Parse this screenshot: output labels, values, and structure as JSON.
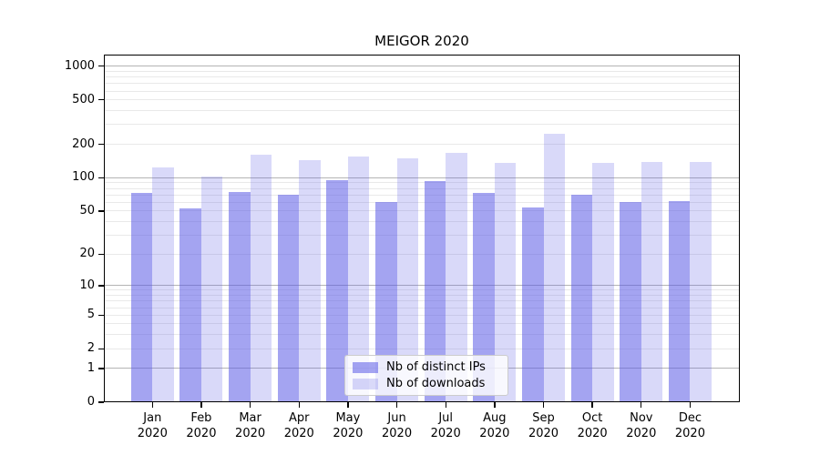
{
  "title": "MEIGOR 2020",
  "chart_data": {
    "type": "bar",
    "title": "MEIGOR 2020",
    "categories": [
      "Jan",
      "Feb",
      "Mar",
      "Apr",
      "May",
      "Jun",
      "Jul",
      "Aug",
      "Sep",
      "Oct",
      "Nov",
      "Dec"
    ],
    "x_year": "2020",
    "series": [
      {
        "name": "Nb of distinct IPs",
        "color": "rgba(90,90,230,0.55)",
        "color_hex_on_white": "#a6a6ef",
        "values": [
          73,
          53,
          75,
          70,
          96,
          60,
          93,
          73,
          54,
          70,
          60,
          62
        ]
      },
      {
        "name": "Nb of downloads",
        "color": "rgba(90,90,230,0.23)",
        "color_hex_on_white": "#d9d9f7",
        "values": [
          124,
          102,
          160,
          143,
          155,
          151,
          168,
          137,
          247,
          137,
          138,
          140
        ]
      }
    ],
    "yscale": "log10(value+1)",
    "ytick_values": [
      1000,
      500,
      200,
      100,
      50,
      20,
      10,
      5,
      2,
      1,
      0
    ],
    "ylim": [
      0,
      1270
    ],
    "grid": true,
    "legend": {
      "items": [
        "Nb of distinct IPs",
        "Nb of downloads"
      ],
      "position": "lower center"
    }
  },
  "style": {
    "major_grid_color": "#b4b4b4",
    "minor_grid_color": "#e9e9e9",
    "axis_color": "#000000",
    "background": "#ffffff"
  }
}
